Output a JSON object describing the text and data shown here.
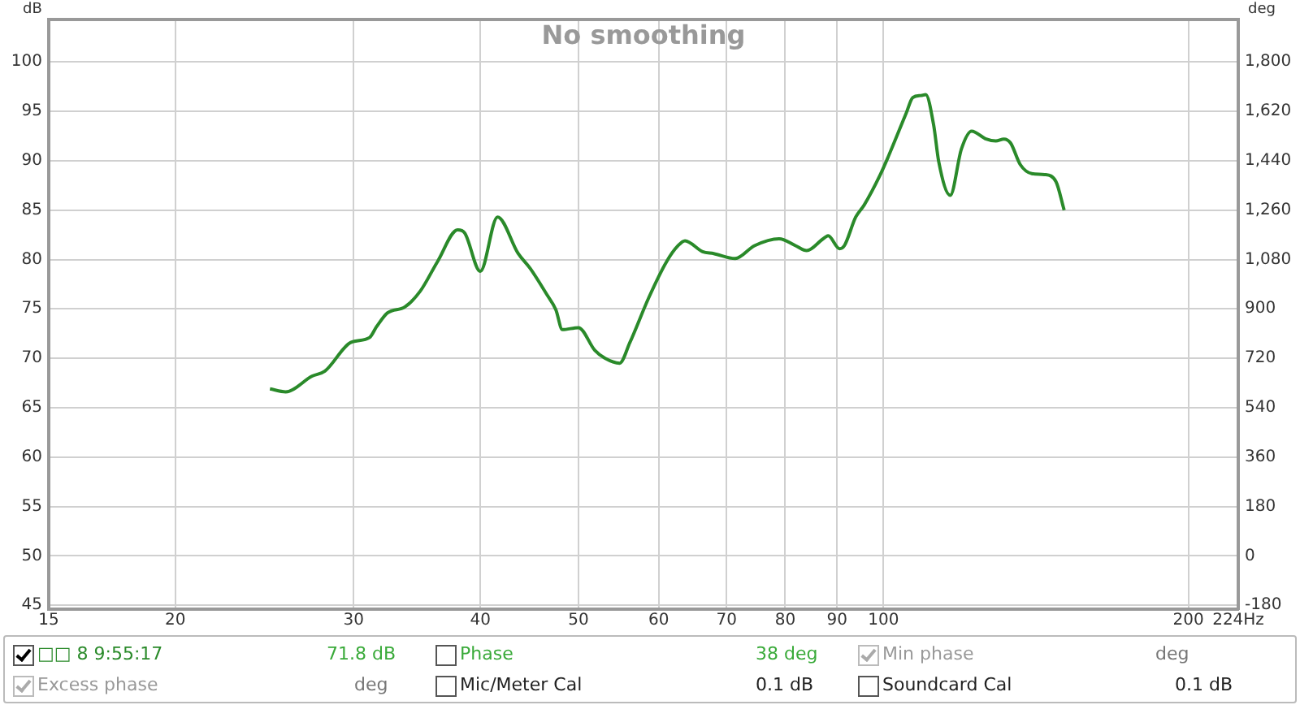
{
  "chart_data": {
    "type": "line",
    "title": "No smoothing",
    "ylabel": "dB",
    "y2label": "deg",
    "x": [
      24.8,
      25.7,
      27.3,
      28.1,
      29.8,
      31.1,
      31.6,
      32.4,
      33.7,
      34.9,
      36.3,
      38.0,
      38.6,
      40.0,
      41.6,
      43.6,
      44.8,
      46.5,
      47.5,
      48.2,
      50.0,
      51.9,
      53.1,
      54.9,
      56.2,
      58.7,
      61.1,
      62.7,
      63.7,
      66.3,
      68.0,
      71.4,
      74.6,
      78.9,
      81.9,
      84.0,
      87.2,
      88.2,
      90.5,
      91.5,
      93.9,
      95.7,
      99.3,
      101.1,
      105.3,
      106.9,
      108.9,
      110.1,
      112.1,
      113.4,
      116.4,
      119.4,
      122.2,
      126.3,
      129.1,
      131.5,
      133.5,
      136.5,
      140.1,
      144.2,
      148.0,
      150.8
    ],
    "series": [
      {
        "name": "□□ 8 9:55:17",
        "color": "#2a8a2a",
        "values": [
          66.9,
          66.6,
          68.2,
          68.7,
          71.6,
          72.1,
          73.2,
          74.6,
          75.2,
          76.8,
          79.8,
          83.0,
          82.7,
          78.8,
          84.3,
          80.6,
          79.1,
          76.5,
          74.9,
          72.9,
          73.1,
          70.8,
          70.0,
          69.5,
          71.6,
          76.2,
          79.8,
          81.4,
          81.9,
          80.8,
          80.6,
          80.1,
          81.4,
          82.1,
          81.4,
          80.9,
          82.1,
          82.4,
          81.1,
          81.4,
          84.3,
          85.5,
          88.6,
          90.4,
          94.8,
          96.4,
          96.6,
          96.7,
          93.6,
          89.9,
          86.5,
          91.2,
          93.0,
          92.2,
          92.0,
          92.2,
          91.8,
          89.6,
          88.7,
          88.6,
          87.9,
          85.0
        ]
      }
    ],
    "log": "x",
    "xlim": [
      15,
      224
    ],
    "xticks": [
      15,
      20,
      30,
      40,
      50,
      60,
      70,
      80,
      90,
      100,
      200,
      {
        "value": 224,
        "label": "224Hz"
      }
    ],
    "ylim": [
      44.6,
      104.3
    ],
    "yticks": [
      45,
      50,
      55,
      60,
      65,
      70,
      75,
      80,
      85,
      90,
      95,
      100
    ],
    "y2lim": [
      -194.4,
      1954.8
    ],
    "y2ticks": [
      -180,
      0,
      180,
      360,
      540,
      720,
      900,
      {
        "value": 1080,
        "label": "1,080"
      },
      {
        "value": 1260,
        "label": "1,260"
      },
      {
        "value": 1440,
        "label": "1,440"
      },
      {
        "value": 1620,
        "label": "1,620"
      },
      {
        "value": 1800,
        "label": "1,800"
      }
    ],
    "grid": true,
    "legend": "bottom",
    "marker": "none",
    "line_style": "solid",
    "annotations": [
      "71.8 dB",
      "Phase",
      "38 deg",
      "Min phase",
      "deg",
      "Excess phase",
      "deg",
      "Mic/Meter Cal",
      "0.1 dB",
      "Soundcard Cal",
      "0.1 dB"
    ]
  }
}
